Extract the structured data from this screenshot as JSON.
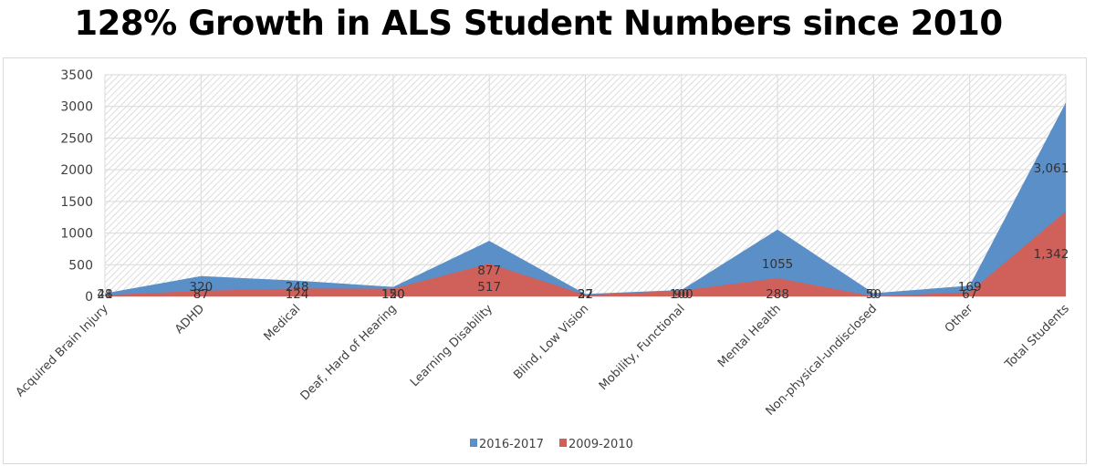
{
  "chart_data": {
    "type": "area",
    "title": "128% Growth in ALS Student Numbers since 2010",
    "xlabel": "",
    "ylabel": "",
    "ylim": [
      0,
      3500
    ],
    "yticks": [
      0,
      500,
      1000,
      1500,
      2000,
      2500,
      3000,
      3500
    ],
    "grid": true,
    "legend_position": "bottom",
    "categories": [
      "Acquired Brain Injury",
      "ADHD",
      "Medical",
      "Deaf, Hard of Hearing",
      "Learning Disability",
      "Blind, Low Vision",
      "Mobility, Functional",
      "Mental Health",
      "Non-physical-undisclosed",
      "Other",
      "Total Students"
    ],
    "series": [
      {
        "name": "2016-2017",
        "color": "#5b8fc7",
        "values": [
          48,
          320,
          248,
          150,
          877,
          37,
          100,
          1055,
          50,
          169,
          3061
        ],
        "labels": [
          "48",
          "320",
          "248",
          "150",
          "877",
          "37",
          "100",
          "1055",
          "50",
          "169",
          "3,061"
        ]
      },
      {
        "name": "2009-2010",
        "color": "#d0605a",
        "values": [
          21,
          87,
          124,
          120,
          517,
          22,
          90,
          288,
          0,
          67,
          1342
        ],
        "labels": [
          "21",
          "87",
          "124",
          "120",
          "517",
          "22",
          "90",
          "288",
          "0",
          "67",
          "1,342"
        ]
      }
    ]
  }
}
